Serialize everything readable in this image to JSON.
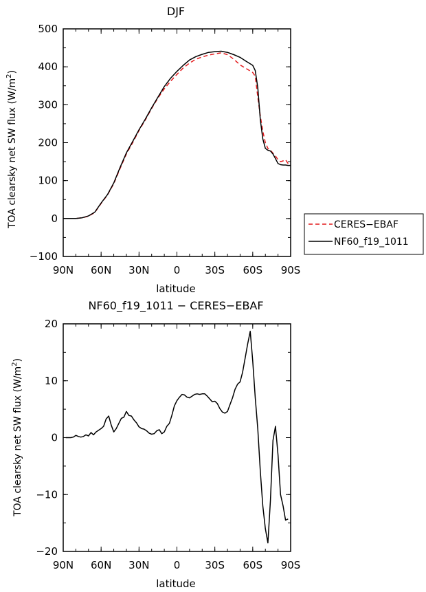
{
  "chart_data": [
    {
      "type": "line",
      "title": "DJF",
      "xlabel": "latitude",
      "ylabel": "TOA clearsky net SW flux (W/m²)",
      "ylabel_main": "TOA clearsky net SW flux (W/m",
      "ylabel_sup": "2",
      "ylabel_tail": ")",
      "xlim": [
        90,
        -90
      ],
      "ylim": [
        -100,
        500
      ],
      "xticks": [
        90,
        60,
        30,
        0,
        -30,
        -60,
        -90
      ],
      "xtick_labels": [
        "90N",
        "60N",
        "30N",
        "0",
        "30S",
        "60S",
        "90S"
      ],
      "yticks": [
        -100,
        0,
        100,
        200,
        300,
        400,
        500
      ],
      "ytick_labels": [
        "−100",
        "0",
        "100",
        "200",
        "300",
        "400",
        "500"
      ],
      "legend": {
        "placement": "right, outside plot",
        "entries": [
          {
            "name": "CERES−EBAF",
            "color": "#e41a1c",
            "style": "dashed"
          },
          {
            "name": "NF60_f19_1011",
            "color": "#000000",
            "style": "solid"
          }
        ]
      },
      "series": [
        {
          "name": "CERES−EBAF",
          "color": "#e41a1c",
          "style": "dashed",
          "x": [
            90,
            85,
            80,
            75,
            70,
            65,
            60,
            55,
            50,
            45,
            40,
            35,
            30,
            25,
            20,
            15,
            10,
            5,
            0,
            -5,
            -10,
            -15,
            -20,
            -25,
            -30,
            -35,
            -40,
            -45,
            -50,
            -55,
            -60,
            -62,
            -64,
            -66,
            -68,
            -70,
            -72,
            -74,
            -76,
            -78,
            -80,
            -82,
            -84,
            -86,
            -88,
            -90
          ],
          "values": [
            0,
            0,
            0,
            2,
            6,
            16,
            40,
            62,
            92,
            132,
            170,
            200,
            232,
            260,
            290,
            318,
            342,
            362,
            380,
            397,
            410,
            420,
            426,
            431,
            434,
            437,
            432,
            420,
            405,
            395,
            385,
            375,
            320,
            270,
            230,
            200,
            185,
            180,
            172,
            165,
            155,
            150,
            152,
            155,
            145,
            142
          ]
        },
        {
          "name": "NF60_f19_1011",
          "color": "#000000",
          "style": "solid",
          "x": [
            90,
            85,
            80,
            75,
            70,
            65,
            60,
            55,
            50,
            45,
            40,
            35,
            30,
            25,
            20,
            15,
            10,
            5,
            0,
            -5,
            -10,
            -15,
            -20,
            -25,
            -30,
            -35,
            -40,
            -45,
            -50,
            -55,
            -60,
            -62,
            -64,
            -66,
            -68,
            -70,
            -72,
            -74,
            -76,
            -78,
            -80,
            -82,
            -84,
            -86,
            -88,
            -90
          ],
          "values": [
            0,
            0,
            0,
            2,
            7,
            17,
            41,
            63,
            94,
            135,
            173,
            203,
            234,
            262,
            292,
            320,
            348,
            370,
            388,
            404,
            418,
            427,
            433,
            438,
            440,
            441,
            438,
            432,
            425,
            414,
            404,
            390,
            345,
            260,
            210,
            185,
            180,
            178,
            170,
            158,
            145,
            142,
            141,
            141,
            140,
            140
          ]
        }
      ]
    },
    {
      "type": "line",
      "title": "NF60_f19_1011 − CERES−EBAF",
      "xlabel": "latitude",
      "ylabel": "TOA clearsky net SW flux (W/m²)",
      "ylabel_main": "TOA clearsky net SW flux (W/m",
      "ylabel_sup": "2",
      "ylabel_tail": ")",
      "xlim": [
        90,
        -90
      ],
      "ylim": [
        -20,
        20
      ],
      "xticks": [
        90,
        60,
        30,
        0,
        -30,
        -60,
        -90
      ],
      "xtick_labels": [
        "90N",
        "60N",
        "30N",
        "0",
        "30S",
        "60S",
        "90S"
      ],
      "yticks": [
        -20,
        -10,
        0,
        10,
        20
      ],
      "ytick_labels": [
        "−20",
        "−10",
        "0",
        "10",
        "20"
      ],
      "series": [
        {
          "name": "",
          "color": "#000000",
          "style": "solid",
          "x": [
            88,
            84,
            82,
            80,
            78,
            76,
            74,
            72,
            70,
            68,
            66,
            64,
            62,
            60,
            58,
            56,
            54,
            52,
            50,
            48,
            46,
            44,
            42,
            40,
            38,
            36,
            34,
            32,
            30,
            28,
            26,
            24,
            22,
            20,
            18,
            16,
            14,
            12,
            10,
            8,
            6,
            4,
            2,
            0,
            -2,
            -4,
            -6,
            -8,
            -10,
            -12,
            -14,
            -16,
            -18,
            -20,
            -22,
            -24,
            -26,
            -28,
            -30,
            -32,
            -34,
            -36,
            -38,
            -40,
            -42,
            -44,
            -46,
            -48,
            -50,
            -52,
            -54,
            -56,
            -58,
            -60,
            -62,
            -64,
            -66,
            -68,
            -70,
            -72,
            -74,
            -76,
            -78,
            -80,
            -82,
            -84,
            -86,
            -88
          ],
          "values": [
            0,
            0,
            0.1,
            0.4,
            0.2,
            0.1,
            0.2,
            0.5,
            0.3,
            0.9,
            0.5,
            1.0,
            1.3,
            1.6,
            2.0,
            3.3,
            3.8,
            2.2,
            1.0,
            1.6,
            2.5,
            3.4,
            3.6,
            4.6,
            3.9,
            3.8,
            3.1,
            2.6,
            1.9,
            1.6,
            1.5,
            1.2,
            0.8,
            0.6,
            0.7,
            1.2,
            1.4,
            0.7,
            1.0,
            2.0,
            2.5,
            3.9,
            5.6,
            6.5,
            7.1,
            7.6,
            7.5,
            7.1,
            7.0,
            7.3,
            7.6,
            7.7,
            7.6,
            7.7,
            7.7,
            7.3,
            6.8,
            6.3,
            6.4,
            6.0,
            5.1,
            4.5,
            4.3,
            4.6,
            5.8,
            7.0,
            8.5,
            9.4,
            9.8,
            11.5,
            14.0,
            16.5,
            18.7,
            13.5,
            7.0,
            1.5,
            -6.0,
            -12.0,
            -16.0,
            -18.5,
            -11.0,
            -0.5,
            2.0,
            -3.0,
            -10.0,
            -12.0,
            -14.5,
            -14.3
          ]
        }
      ]
    }
  ]
}
